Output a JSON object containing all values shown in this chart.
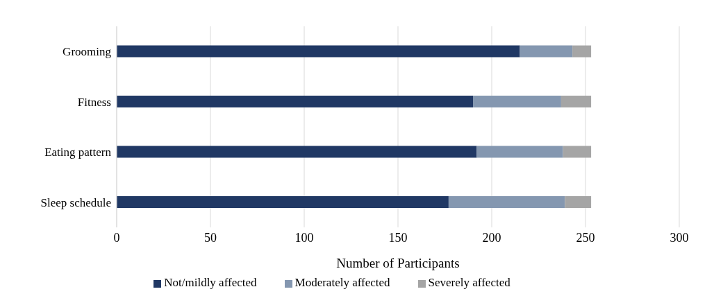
{
  "chart_data": {
    "type": "bar",
    "orientation": "horizontal",
    "stacked": true,
    "xlabel": "Number of Participants",
    "categories": [
      "Grooming",
      "Fitness",
      "Eating pattern",
      "Sleep schedule"
    ],
    "series": [
      {
        "name": "Not/mildly affected",
        "color": "#203864",
        "values": [
          215,
          190,
          192,
          177
        ]
      },
      {
        "name": "Moderately affected",
        "color": "#8497b0",
        "values": [
          28,
          47,
          46,
          62
        ]
      },
      {
        "name": "Severely affected",
        "color": "#a5a5a5",
        "values": [
          10,
          16,
          15,
          14
        ]
      }
    ],
    "xlim": [
      0,
      300
    ],
    "xticks": [
      0,
      50,
      100,
      150,
      200,
      250,
      300
    ],
    "grid": "x",
    "legend": "bottom"
  }
}
